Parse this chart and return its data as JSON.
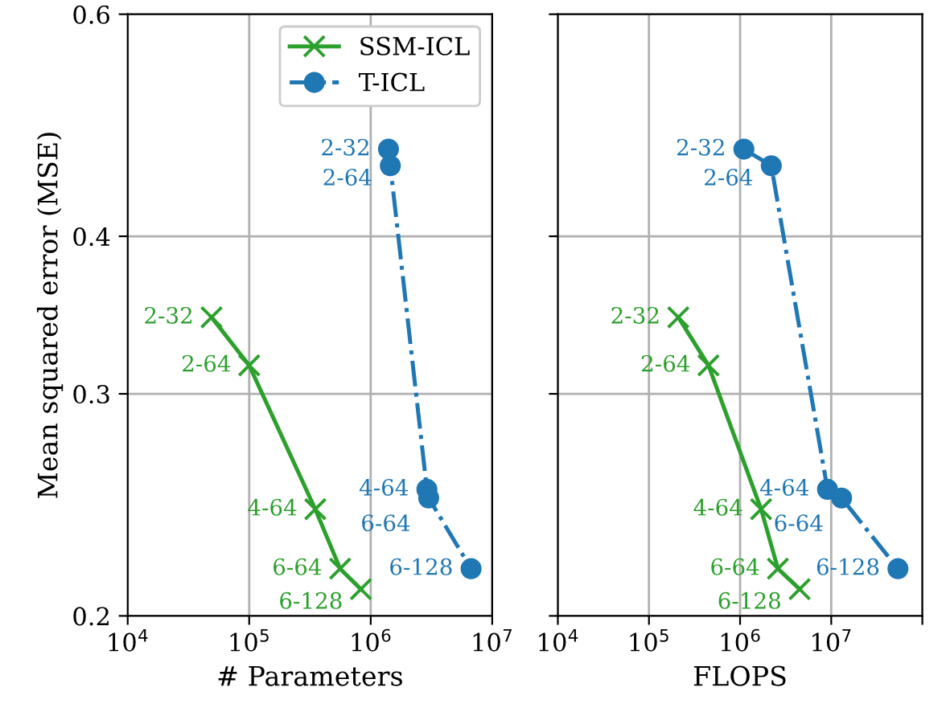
{
  "chart_data": [
    {
      "type": "line",
      "xlabel": "# Parameters",
      "ylabel": "Mean squared error (MSE)",
      "log": "xy",
      "grid": true,
      "legend": "top right",
      "xlim": [
        10000,
        10000000
      ],
      "xticks": [
        {
          "value": 10000,
          "label": "10$^{4}$"
        },
        {
          "value": 100000,
          "label": "10$^{5}$"
        },
        {
          "value": 1000000,
          "label": "10$^{6}$"
        },
        {
          "value": 10000000,
          "label": "10$^{7}$"
        }
      ],
      "ylim": [
        0.2,
        0.6
      ],
      "yticks": [
        0.2,
        0.3,
        0.4,
        0.6
      ],
      "series": [
        {
          "name": "SSM-ICL",
          "color": "#2ca02c",
          "marker": "cross",
          "line_style": "solid",
          "x": [
            49000,
            100000,
            350000,
            560000,
            830000
          ],
          "values": [
            0.345,
            0.316,
            0.243,
            0.218,
            0.21
          ]
        },
        {
          "name": "T-ICL",
          "color": "#1f77b4",
          "marker": "circle",
          "line_style": "dashdot",
          "x": [
            1400000,
            1450000,
            2900000,
            3000000,
            6700000
          ],
          "values": [
            0.469,
            0.455,
            0.252,
            0.248,
            0.218
          ]
        }
      ],
      "annotations": [
        {
          "text": "2-32",
          "x": 49000,
          "y": 0.345
        },
        {
          "text": "2-64",
          "x": 100000,
          "y": 0.316
        },
        {
          "text": "4-64",
          "x": 350000,
          "y": 0.243
        },
        {
          "text": "6-64",
          "x": 560000,
          "y": 0.218
        },
        {
          "text": "6-128",
          "x": 830000,
          "y": 0.21
        },
        {
          "text": "2-32",
          "x": 1400000,
          "y": 0.469
        },
        {
          "text": "2-64",
          "x": 1450000,
          "y": 0.455
        },
        {
          "text": "4-64",
          "x": 2900000,
          "y": 0.252
        },
        {
          "text": "6-64",
          "x": 3000000,
          "y": 0.248
        },
        {
          "text": "6-128",
          "x": 6700000,
          "y": 0.218
        }
      ]
    },
    {
      "type": "line",
      "xlabel": "FLOPS",
      "log": "xy",
      "grid": true,
      "tick_labels": "x",
      "xlim": [
        10000,
        100000000
      ],
      "xticks": [
        {
          "value": 10000,
          "label": "10$^{4}$"
        },
        {
          "value": 100000,
          "label": "10$^{5}$"
        },
        {
          "value": 1000000,
          "label": "10$^{6}$"
        },
        {
          "value": 10000000,
          "label": "10$^{7}$"
        },
        {
          "value": 100000000,
          "label": null
        }
      ],
      "ylim": [
        0.2,
        0.6
      ],
      "yticks": [
        0.2,
        0.3,
        0.4,
        0.6
      ],
      "series": [
        {
          "color": "#2ca02c",
          "marker": "cross",
          "line_style": "solid",
          "x": [
            210000,
            450000,
            1700000,
            2600000,
            4500000
          ],
          "values": [
            0.345,
            0.316,
            0.243,
            0.218,
            0.21
          ]
        },
        {
          "color": "#1f77b4",
          "marker": "circle",
          "line_style": "dashdot",
          "x": [
            1100000,
            2200000,
            9100000,
            13000000,
            54000000
          ],
          "values": [
            0.469,
            0.455,
            0.252,
            0.248,
            0.218
          ]
        }
      ],
      "annotations": [
        {
          "text": "2-32",
          "x": 210000,
          "y": 0.345
        },
        {
          "text": "2-64",
          "x": 450000,
          "y": 0.316
        },
        {
          "text": "4-64",
          "x": 1700000,
          "y": 0.243
        },
        {
          "text": "6-64",
          "x": 2600000,
          "y": 0.218
        },
        {
          "text": "6-128",
          "x": 4500000,
          "y": 0.21
        },
        {
          "text": "2-32",
          "x": 1100000,
          "y": 0.469
        },
        {
          "text": "2-64",
          "x": 2200000,
          "y": 0.455
        },
        {
          "text": "4-64",
          "x": 9100000,
          "y": 0.252
        },
        {
          "text": "6-64",
          "x": 13000000,
          "y": 0.248
        },
        {
          "text": "6-128",
          "x": 54000000,
          "y": 0.218
        }
      ]
    }
  ]
}
